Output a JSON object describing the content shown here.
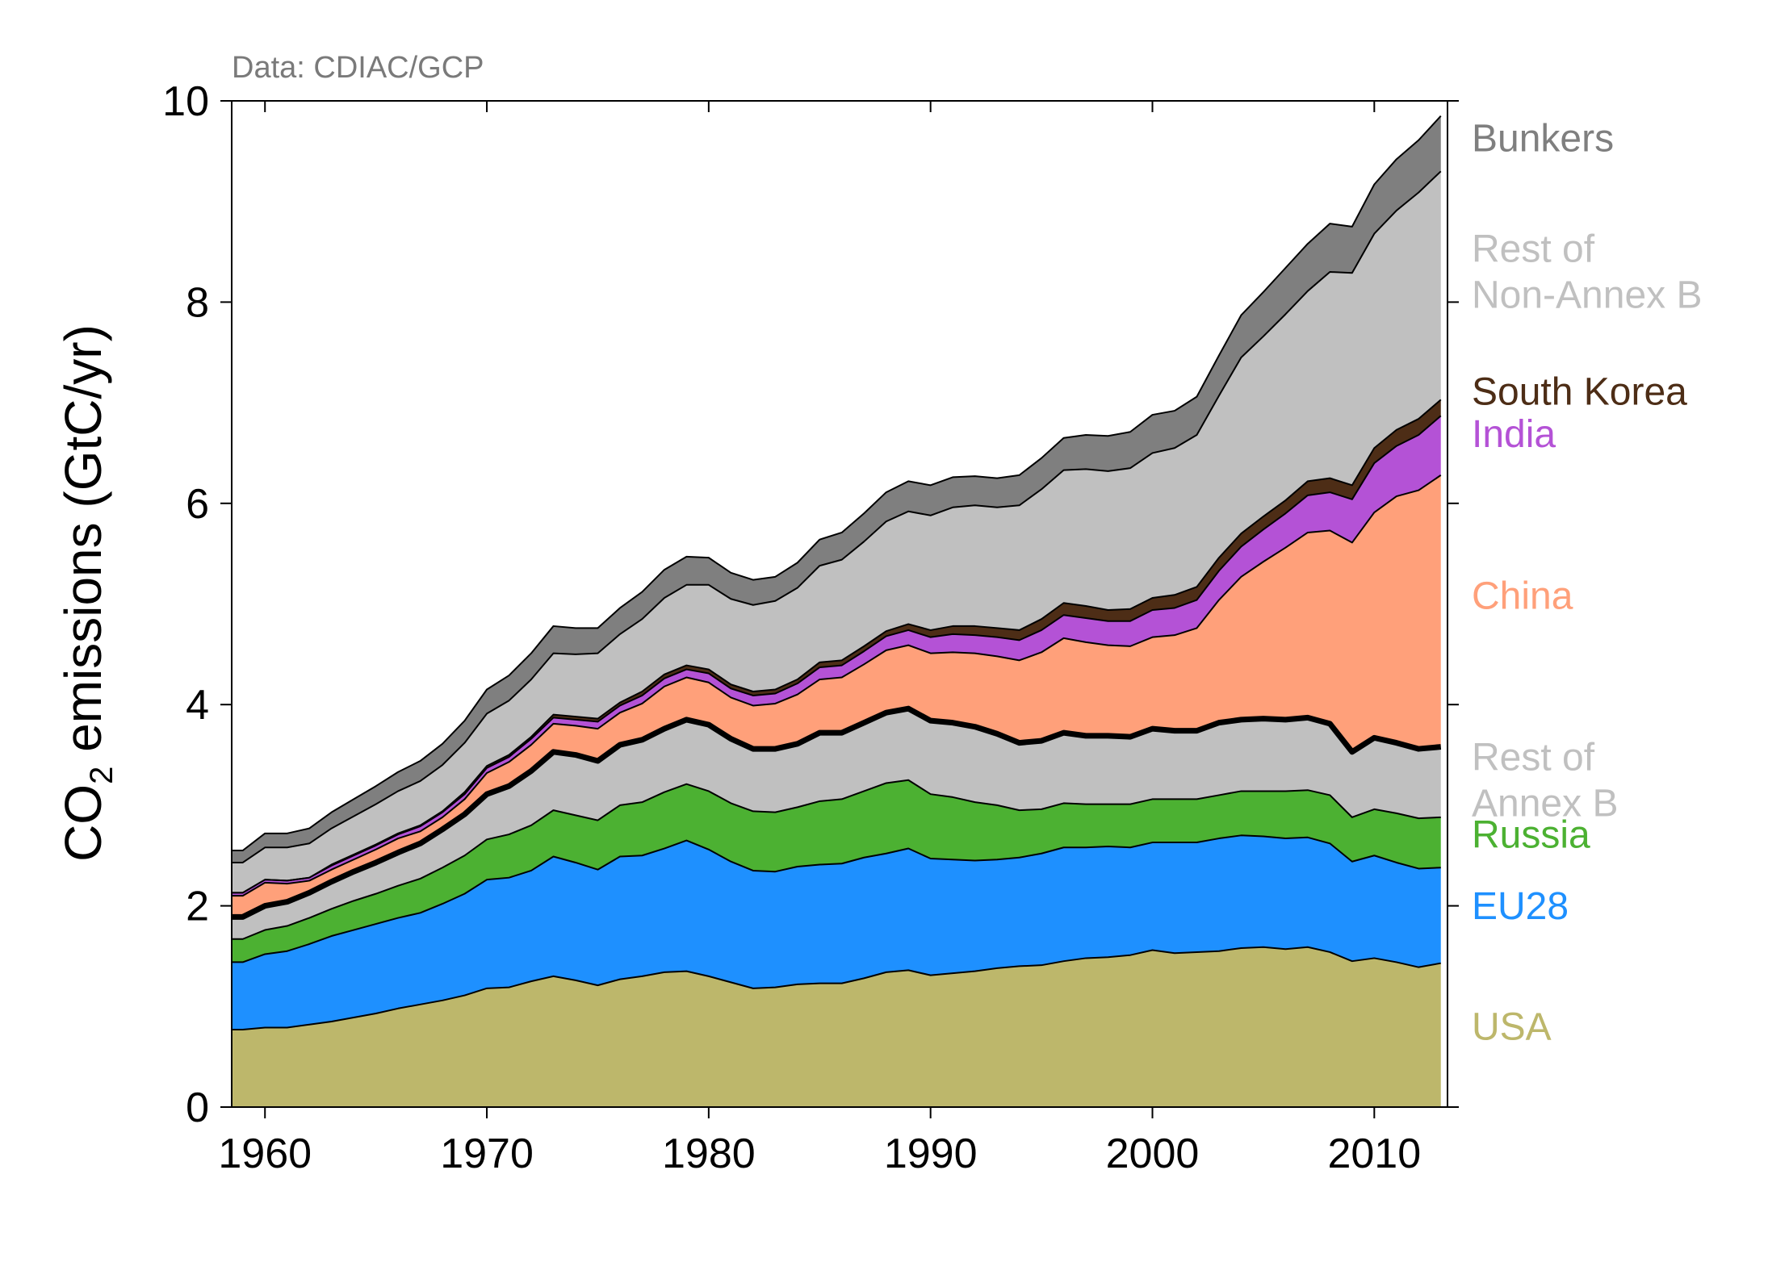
{
  "chart_data": {
    "type": "area",
    "stacked": true,
    "title": "",
    "source": "Data: CDIAC/GCP",
    "xlabel": "",
    "ylabel_main": "CO",
    "ylabel_sub": "2",
    "ylabel_rest": " emissions (GtC/yr)",
    "xlim": [
      1958.5,
      2013.3
    ],
    "ylim": [
      0,
      10
    ],
    "xticks": [
      1960,
      1970,
      1980,
      1990,
      2000,
      2010
    ],
    "yticks": [
      0,
      2,
      4,
      6,
      8,
      10
    ],
    "legend_placement": "right-side labels",
    "thick_boundary_after": "Rest of Annex B",
    "x": [
      1959,
      1960,
      1961,
      1962,
      1963,
      1964,
      1965,
      1966,
      1967,
      1968,
      1969,
      1970,
      1971,
      1972,
      1973,
      1974,
      1975,
      1976,
      1977,
      1978,
      1979,
      1980,
      1981,
      1982,
      1983,
      1984,
      1985,
      1986,
      1987,
      1988,
      1989,
      1990,
      1991,
      1992,
      1993,
      1994,
      1995,
      1996,
      1997,
      1998,
      1999,
      2000,
      2001,
      2002,
      2003,
      2004,
      2005,
      2006,
      2007,
      2008,
      2009,
      2010,
      2011,
      2012,
      2013
    ],
    "series": [
      {
        "name": "USA",
        "color": "#bdb76b",
        "values": [
          0.77,
          0.79,
          0.79,
          0.82,
          0.85,
          0.89,
          0.93,
          0.98,
          1.02,
          1.06,
          1.11,
          1.18,
          1.19,
          1.25,
          1.3,
          1.26,
          1.21,
          1.27,
          1.3,
          1.34,
          1.35,
          1.3,
          1.24,
          1.18,
          1.19,
          1.22,
          1.23,
          1.23,
          1.28,
          1.34,
          1.36,
          1.31,
          1.33,
          1.35,
          1.38,
          1.4,
          1.41,
          1.45,
          1.48,
          1.49,
          1.51,
          1.56,
          1.53,
          1.54,
          1.55,
          1.58,
          1.59,
          1.57,
          1.59,
          1.54,
          1.45,
          1.48,
          1.44,
          1.39,
          1.43
        ]
      },
      {
        "name": "EU28",
        "color": "#1e90ff",
        "values": [
          0.67,
          0.73,
          0.76,
          0.8,
          0.85,
          0.87,
          0.89,
          0.9,
          0.91,
          0.96,
          1.01,
          1.08,
          1.09,
          1.1,
          1.19,
          1.17,
          1.15,
          1.22,
          1.2,
          1.23,
          1.3,
          1.26,
          1.2,
          1.17,
          1.15,
          1.17,
          1.18,
          1.19,
          1.2,
          1.18,
          1.21,
          1.16,
          1.13,
          1.1,
          1.08,
          1.08,
          1.11,
          1.13,
          1.1,
          1.1,
          1.07,
          1.07,
          1.1,
          1.09,
          1.12,
          1.12,
          1.1,
          1.1,
          1.09,
          1.08,
          0.99,
          1.02,
          0.99,
          0.98,
          0.95
        ]
      },
      {
        "name": "Russia",
        "color": "#4cb132",
        "values": [
          0.23,
          0.24,
          0.25,
          0.26,
          0.27,
          0.29,
          0.3,
          0.32,
          0.34,
          0.36,
          0.38,
          0.4,
          0.43,
          0.45,
          0.46,
          0.47,
          0.49,
          0.51,
          0.53,
          0.56,
          0.56,
          0.58,
          0.58,
          0.59,
          0.59,
          0.59,
          0.63,
          0.64,
          0.66,
          0.7,
          0.68,
          0.64,
          0.62,
          0.58,
          0.54,
          0.47,
          0.44,
          0.44,
          0.43,
          0.42,
          0.43,
          0.43,
          0.43,
          0.43,
          0.43,
          0.44,
          0.45,
          0.47,
          0.47,
          0.48,
          0.44,
          0.46,
          0.49,
          0.5,
          0.5
        ]
      },
      {
        "name": "Rest of Annex B",
        "color": "#c0c0c0",
        "values": [
          0.22,
          0.24,
          0.24,
          0.25,
          0.27,
          0.29,
          0.31,
          0.33,
          0.35,
          0.38,
          0.41,
          0.45,
          0.48,
          0.54,
          0.58,
          0.6,
          0.59,
          0.6,
          0.62,
          0.63,
          0.64,
          0.66,
          0.64,
          0.62,
          0.63,
          0.63,
          0.68,
          0.66,
          0.68,
          0.7,
          0.71,
          0.73,
          0.74,
          0.75,
          0.71,
          0.67,
          0.68,
          0.7,
          0.68,
          0.68,
          0.67,
          0.7,
          0.68,
          0.68,
          0.72,
          0.71,
          0.72,
          0.71,
          0.72,
          0.71,
          0.65,
          0.71,
          0.7,
          0.69,
          0.7
        ]
      },
      {
        "name": "China",
        "color": "#ffa07a",
        "values": [
          0.21,
          0.23,
          0.18,
          0.12,
          0.12,
          0.12,
          0.13,
          0.14,
          0.12,
          0.12,
          0.15,
          0.21,
          0.24,
          0.26,
          0.28,
          0.29,
          0.32,
          0.32,
          0.36,
          0.42,
          0.42,
          0.42,
          0.41,
          0.43,
          0.45,
          0.49,
          0.53,
          0.55,
          0.58,
          0.62,
          0.63,
          0.67,
          0.7,
          0.73,
          0.77,
          0.82,
          0.88,
          0.94,
          0.93,
          0.9,
          0.9,
          0.91,
          0.95,
          1.02,
          1.22,
          1.42,
          1.56,
          1.71,
          1.84,
          1.92,
          2.08,
          2.24,
          2.45,
          2.57,
          2.7
        ]
      },
      {
        "name": "India",
        "color": "#b452d6",
        "values": [
          0.03,
          0.03,
          0.03,
          0.03,
          0.04,
          0.04,
          0.04,
          0.04,
          0.05,
          0.05,
          0.05,
          0.05,
          0.05,
          0.06,
          0.06,
          0.06,
          0.07,
          0.07,
          0.08,
          0.08,
          0.08,
          0.09,
          0.09,
          0.1,
          0.1,
          0.11,
          0.12,
          0.12,
          0.13,
          0.14,
          0.15,
          0.16,
          0.18,
          0.18,
          0.19,
          0.2,
          0.22,
          0.23,
          0.24,
          0.24,
          0.25,
          0.27,
          0.27,
          0.28,
          0.29,
          0.3,
          0.32,
          0.34,
          0.37,
          0.38,
          0.43,
          0.49,
          0.5,
          0.55,
          0.59
        ]
      },
      {
        "name": "South Korea",
        "color": "#4d2d16",
        "values": [
          0.0,
          0.0,
          0.0,
          0.0,
          0.01,
          0.01,
          0.01,
          0.01,
          0.01,
          0.01,
          0.02,
          0.02,
          0.02,
          0.02,
          0.03,
          0.03,
          0.03,
          0.03,
          0.04,
          0.04,
          0.04,
          0.04,
          0.04,
          0.04,
          0.04,
          0.04,
          0.05,
          0.05,
          0.05,
          0.05,
          0.06,
          0.07,
          0.08,
          0.09,
          0.09,
          0.1,
          0.11,
          0.12,
          0.12,
          0.11,
          0.12,
          0.12,
          0.13,
          0.13,
          0.13,
          0.13,
          0.13,
          0.13,
          0.14,
          0.14,
          0.14,
          0.15,
          0.16,
          0.16,
          0.16
        ]
      },
      {
        "name": "Rest of Non-Annex B",
        "color": "#c0c0c0",
        "values": [
          0.3,
          0.32,
          0.33,
          0.34,
          0.36,
          0.38,
          0.4,
          0.42,
          0.44,
          0.46,
          0.49,
          0.52,
          0.54,
          0.57,
          0.61,
          0.62,
          0.65,
          0.68,
          0.72,
          0.76,
          0.8,
          0.84,
          0.85,
          0.86,
          0.88,
          0.91,
          0.96,
          1.0,
          1.04,
          1.09,
          1.12,
          1.14,
          1.18,
          1.2,
          1.2,
          1.24,
          1.29,
          1.32,
          1.36,
          1.38,
          1.4,
          1.44,
          1.46,
          1.51,
          1.61,
          1.75,
          1.79,
          1.85,
          1.89,
          2.05,
          2.11,
          2.13,
          2.18,
          2.25,
          2.27
        ]
      },
      {
        "name": "Bunkers",
        "color": "#7f7f7f",
        "values": [
          0.12,
          0.14,
          0.14,
          0.15,
          0.16,
          0.17,
          0.18,
          0.19,
          0.2,
          0.21,
          0.22,
          0.24,
          0.25,
          0.26,
          0.27,
          0.26,
          0.25,
          0.26,
          0.27,
          0.28,
          0.28,
          0.27,
          0.26,
          0.25,
          0.24,
          0.25,
          0.26,
          0.27,
          0.28,
          0.29,
          0.3,
          0.3,
          0.3,
          0.29,
          0.29,
          0.3,
          0.31,
          0.32,
          0.34,
          0.35,
          0.36,
          0.38,
          0.37,
          0.38,
          0.4,
          0.42,
          0.44,
          0.46,
          0.47,
          0.48,
          0.46,
          0.49,
          0.51,
          0.52,
          0.55
        ]
      }
    ],
    "labels": [
      {
        "series": "Bunkers",
        "lines": [
          "Bunkers"
        ],
        "color": "#7f7f7f",
        "y": 9.5
      },
      {
        "series": "Rest of Non-Annex B",
        "lines": [
          "Rest of",
          "Non-Annex B"
        ],
        "color": "#c0c0c0",
        "y": 8.4
      },
      {
        "series": "South Korea",
        "lines": [
          "South Korea"
        ],
        "color": "#4d2d16",
        "y": 6.98
      },
      {
        "series": "India",
        "lines": [
          "India"
        ],
        "color": "#b452d6",
        "y": 6.56
      },
      {
        "series": "China",
        "lines": [
          "China"
        ],
        "color": "#ffa07a",
        "y": 4.95
      },
      {
        "series": "Rest of Annex B",
        "lines": [
          "Rest of",
          "Annex B"
        ],
        "color": "#c0c0c0",
        "y": 3.35
      },
      {
        "series": "Russia",
        "lines": [
          "Russia"
        ],
        "color": "#4cb132",
        "y": 2.58
      },
      {
        "series": "EU28",
        "lines": [
          "EU28"
        ],
        "color": "#1e90ff",
        "y": 1.87
      },
      {
        "series": "USA",
        "lines": [
          "USA"
        ],
        "color": "#bdb76b",
        "y": 0.67
      }
    ]
  }
}
